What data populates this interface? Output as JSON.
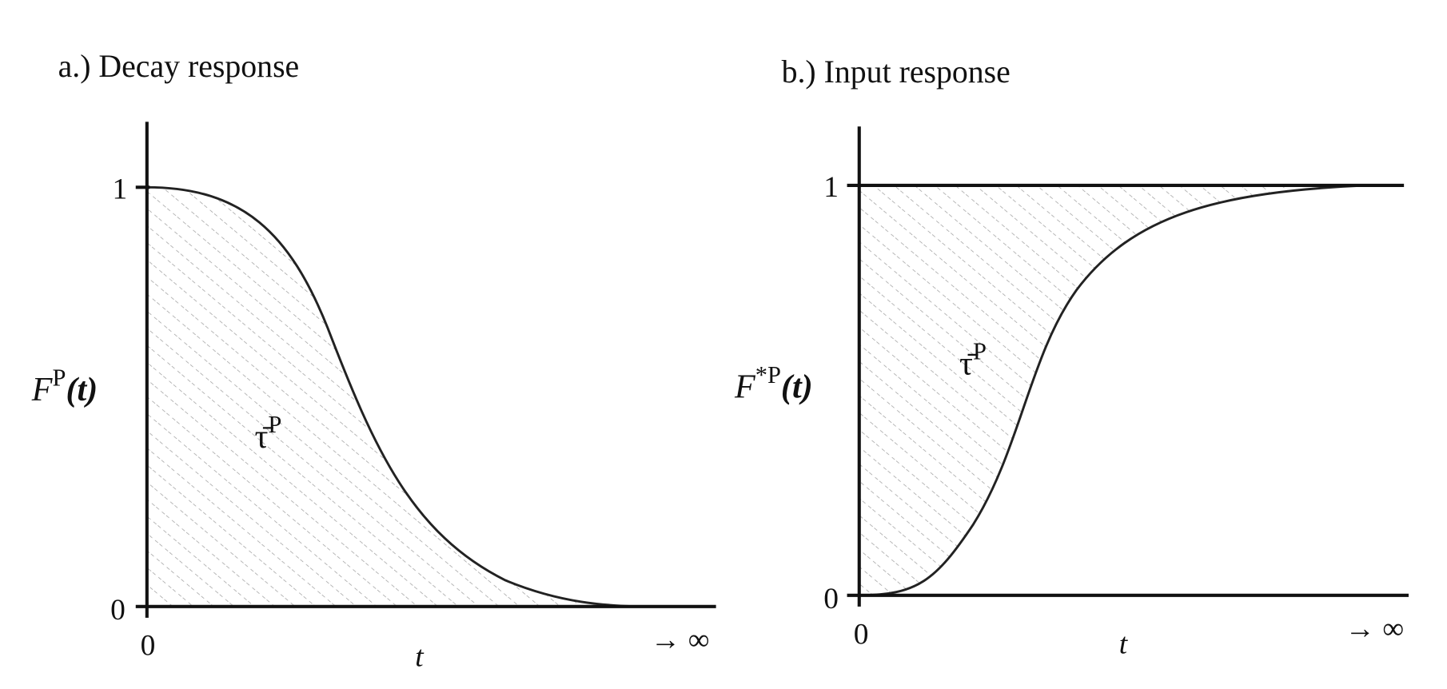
{
  "panels": [
    {
      "title": "a.) Decay response",
      "y_label": {
        "base": "F",
        "sup": "P",
        "arg": "(t)"
      },
      "y_ticks": [
        "1",
        "0"
      ],
      "x_tick": "0",
      "x_label": "t",
      "x_end": "→ ∞",
      "area_label": {
        "base": "τ̄",
        "sup": "P"
      }
    },
    {
      "title": "b.) Input response",
      "y_label": {
        "base": "F",
        "sup": "*P",
        "arg": "(t)"
      },
      "y_ticks": [
        "1",
        "0"
      ],
      "x_tick": "0",
      "x_label": "t",
      "x_end": "→ ∞",
      "area_label": {
        "base": "τ̄",
        "sup": "P"
      }
    }
  ]
}
